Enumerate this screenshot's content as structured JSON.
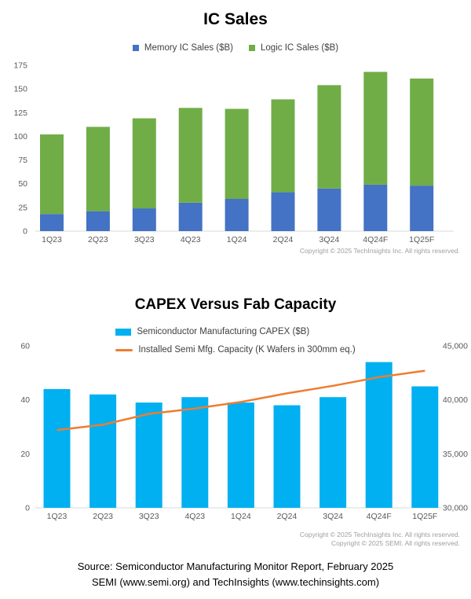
{
  "ic_sales": {
    "title": "IC Sales",
    "legend": [
      {
        "label": "Memory IC Sales ($B)",
        "color": "#4472C4"
      },
      {
        "label": "Logic IC Sales ($B)",
        "color": "#70AD47"
      }
    ],
    "copyright": "Copyright © 2025 TechInsights Inc.  All rights reserved."
  },
  "capex": {
    "title": "CAPEX Versus Fab Capacity",
    "legend": [
      {
        "label": "Semiconductor Manufacturing CAPEX ($B)",
        "color": "#00B0F0",
        "marker": "bar"
      },
      {
        "label": "Installed Semi Mfg. Capacity (K Wafers in 300mm eq.)",
        "color": "#ED7D31",
        "marker": "line"
      }
    ],
    "copyright_line1": "Copyright © 2025 TechInsights Inc.  All rights reserved.",
    "copyright_line2": "Copyright © 2025 SEMI.  All rights reserved."
  },
  "footer": {
    "line1": "Source: Semiconductor Manufacturing Monitor Report, February 2025",
    "line2": "SEMI (www.semi.org) and TechInsights (www.techinsights.com)"
  },
  "chart_data": [
    {
      "type": "bar",
      "stacked": true,
      "title": "IC Sales",
      "categories": [
        "1Q23",
        "2Q23",
        "3Q23",
        "4Q23",
        "1Q24",
        "2Q24",
        "3Q24",
        "4Q24F",
        "1Q25F"
      ],
      "series": [
        {
          "name": "Memory IC Sales ($B)",
          "color": "#4472C4",
          "values": [
            18,
            21,
            24,
            30,
            34,
            41,
            45,
            49,
            48
          ]
        },
        {
          "name": "Logic IC Sales ($B)",
          "color": "#70AD47",
          "values": [
            84,
            89,
            95,
            100,
            95,
            98,
            109,
            119,
            113
          ]
        }
      ],
      "xlabel": "",
      "ylabel": "",
      "ylim": [
        0,
        175
      ],
      "yticks": [
        0,
        25,
        50,
        75,
        100,
        125,
        150,
        175
      ],
      "grid": false,
      "legend_position": "top",
      "axis_color": "#D9D9D9",
      "tick_color": "#595959"
    },
    {
      "type": "bar+line",
      "title": "CAPEX Versus Fab Capacity",
      "categories": [
        "1Q23",
        "2Q23",
        "3Q23",
        "4Q23",
        "1Q24",
        "2Q24",
        "3Q24",
        "4Q24F",
        "1Q25F"
      ],
      "series": [
        {
          "name": "Semiconductor Manufacturing CAPEX ($B)",
          "type": "bar",
          "axis": "left",
          "color": "#00B0F0",
          "values": [
            44,
            42,
            39,
            41,
            39,
            38,
            41,
            54,
            45
          ]
        },
        {
          "name": "Installed Semi Mfg. Capacity (K Wafers in 300mm eq.)",
          "type": "line",
          "axis": "right",
          "color": "#ED7D31",
          "values": [
            37200,
            37700,
            38700,
            39200,
            39800,
            40600,
            41300,
            42100,
            42700
          ]
        }
      ],
      "xlabel": "",
      "ylim_left": [
        0,
        60
      ],
      "yticks_left": [
        0,
        20,
        40,
        60
      ],
      "ylim_right": [
        30000,
        45000
      ],
      "yticks_right": [
        30000,
        35000,
        40000,
        45000
      ],
      "grid": false,
      "legend_position": "top",
      "axis_color": "#D9D9D9",
      "tick_color": "#595959"
    }
  ]
}
